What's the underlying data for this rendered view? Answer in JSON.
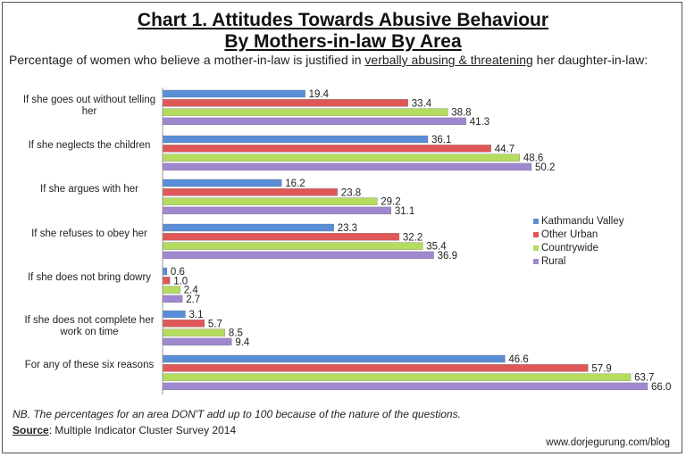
{
  "chart_data": {
    "type": "bar",
    "orientation": "horizontal",
    "title": "Chart 1. Attitudes Towards Abusive Behaviour By Mothers-in-law By Area",
    "title_lines": [
      "Chart 1. Attitudes Towards Abusive Behaviour",
      "By Mothers-in-law By Area"
    ],
    "subtitle_pre": "Percentage of women who believe a mother-in-law is justified in ",
    "subtitle_emph": "verbally abusing & threatening",
    "subtitle_post": " her daughter-in-law:",
    "categories": [
      "If she goes out without telling her",
      "If she neglects the children",
      "If she argues with her",
      "If she refuses to obey her",
      "If she does not bring dowry",
      "If she does not complete her work on time",
      "For any of these six reasons"
    ],
    "series": [
      {
        "name": "Kathmandu Valley",
        "color": "#5b8ed8",
        "values": [
          19.4,
          36.1,
          16.2,
          23.3,
          0.6,
          3.1,
          46.6
        ]
      },
      {
        "name": "Other Urban",
        "color": "#e05757",
        "values": [
          33.4,
          44.7,
          23.8,
          32.2,
          1.0,
          5.7,
          57.9
        ]
      },
      {
        "name": "Countrywide",
        "color": "#b4dc5e",
        "values": [
          38.8,
          48.6,
          29.2,
          35.4,
          2.4,
          8.5,
          63.7
        ]
      },
      {
        "name": "Rural",
        "color": "#9f88cf",
        "values": [
          41.3,
          50.2,
          31.1,
          36.9,
          2.7,
          9.4,
          66.0
        ]
      }
    ],
    "xlim": [
      0,
      66
    ],
    "grid": false,
    "data_labels": true,
    "legend_position": "right"
  },
  "footer": {
    "note": "NB. The percentages for an area DON'T add up to 100 because of the nature of the questions.",
    "source_label": "Source",
    "source_text": ": Multiple Indicator Cluster Survey 2014",
    "url": "www.dorjegurung.com/blog"
  }
}
